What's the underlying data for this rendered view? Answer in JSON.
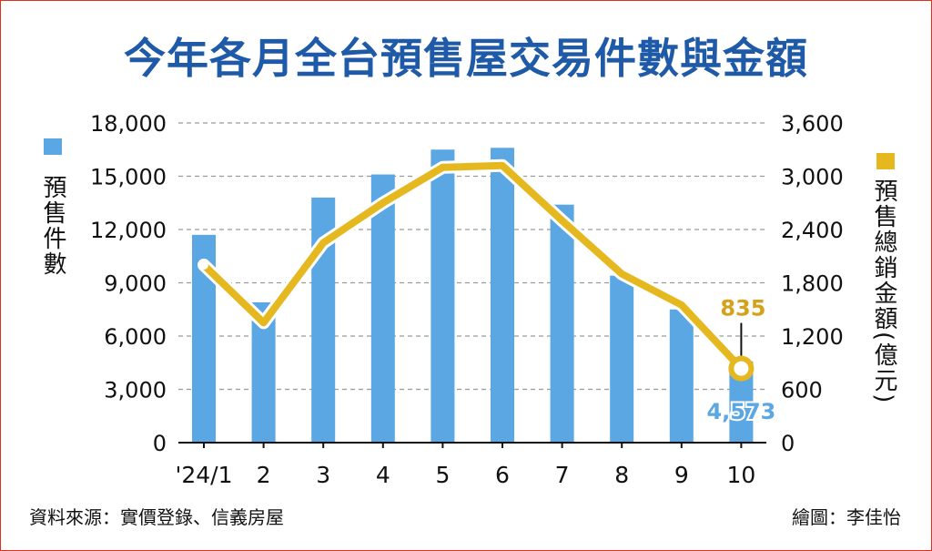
{
  "title": "今年各月全台預售屋交易件數與金額",
  "footer": {
    "source": "資料來源：實價登錄、信義房屋",
    "credit": "繪圖：李佳怡"
  },
  "chart_data": {
    "type": "bar+line",
    "categories": [
      "'24/1",
      "2",
      "3",
      "4",
      "5",
      "6",
      "7",
      "8",
      "9",
      "10"
    ],
    "series": [
      {
        "name": "預售件數",
        "type": "bar",
        "axis": "left",
        "color": "#5aa7e3",
        "values": [
          11700,
          7900,
          13800,
          15100,
          16500,
          16600,
          13400,
          9400,
          7500,
          4573
        ]
      },
      {
        "name": "預售總銷金額(億元)",
        "type": "line",
        "axis": "right",
        "color": "#e6b820",
        "values": [
          2000,
          1350,
          2250,
          2700,
          3100,
          3120,
          2500,
          1900,
          1550,
          835
        ]
      }
    ],
    "y_left": {
      "label": "預售件數",
      "min": 0,
      "max": 18000,
      "ticks": [
        "0",
        "3,000",
        "6,000",
        "9,000",
        "12,000",
        "15,000",
        "18,000"
      ]
    },
    "y_right": {
      "label": "預售總銷金額(億元)",
      "min": 0,
      "max": 3600,
      "ticks": [
        "0",
        "600",
        "1,200",
        "1,800",
        "2,400",
        "3,000",
        "3,600"
      ]
    },
    "annotations": {
      "last_amount": "835",
      "last_count": "4,573"
    },
    "grid": true
  }
}
